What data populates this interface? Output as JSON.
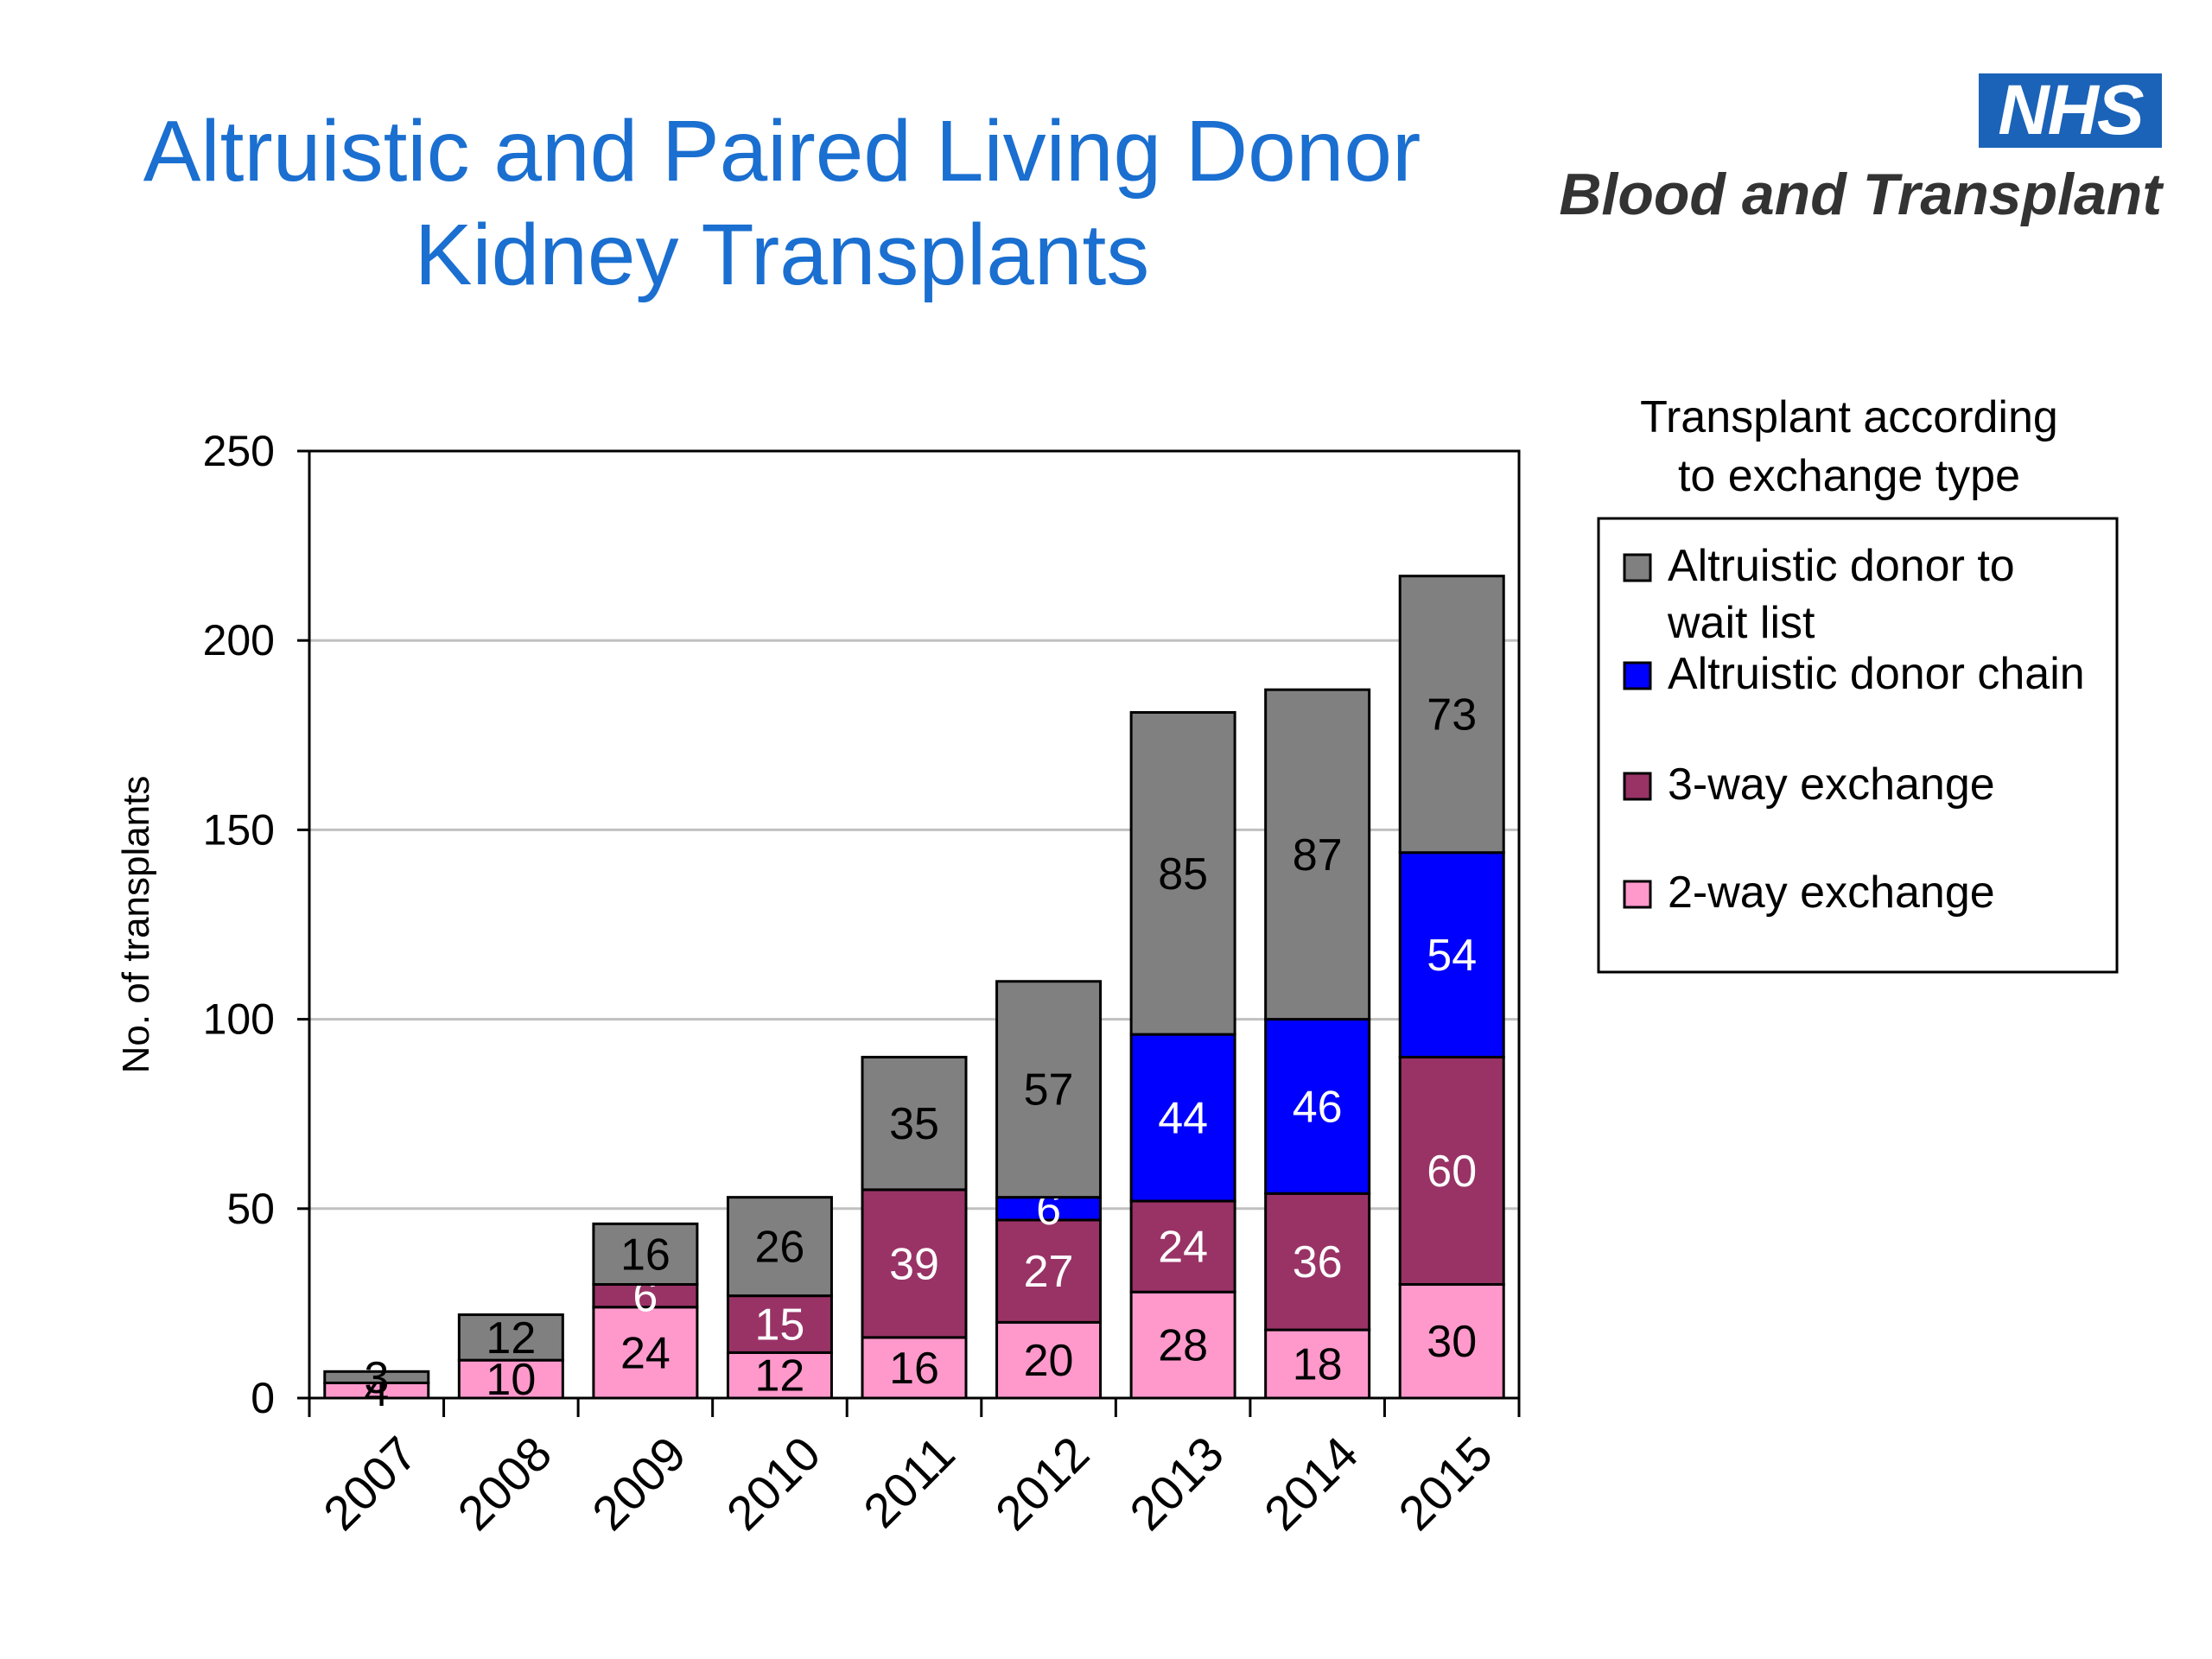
{
  "slide": {
    "title_line1": "Altruistic and Paired Living Donor",
    "title_line2": "Kidney Transplants"
  },
  "logo": {
    "badge": "NHS",
    "org": "Blood and Transplant"
  },
  "legend": {
    "title_line1": "Transplant according",
    "title_line2": "to exchange type"
  },
  "colors": {
    "altruistic_wait_list": "#808080",
    "altruistic_chain": "#0000ff",
    "three_way": "#993366",
    "two_way": "#ff99cc"
  },
  "chart_data": {
    "type": "bar",
    "stacked": true,
    "categories": [
      "2007",
      "2008",
      "2009",
      "2010",
      "2011",
      "2012",
      "2013",
      "2014",
      "2015"
    ],
    "ylabel": "No. of transplants",
    "xlabel": "",
    "ylim": [
      0,
      250
    ],
    "yticks": [
      0,
      50,
      100,
      150,
      200,
      250
    ],
    "grid": true,
    "legend_position": "right",
    "series": [
      {
        "name": "2-way exchange",
        "color": "#ff99cc",
        "label_color": "#000000",
        "values": [
          4,
          10,
          24,
          12,
          16,
          20,
          28,
          18,
          30
        ]
      },
      {
        "name": "3-way exchange",
        "color": "#993366",
        "label_color": "#ffffff",
        "values": [
          0,
          0,
          6,
          15,
          39,
          27,
          24,
          36,
          60
        ]
      },
      {
        "name": "Altruistic donor chain",
        "color": "#0000ff",
        "label_color": "#ffffff",
        "values": [
          0,
          0,
          0,
          0,
          0,
          6,
          44,
          46,
          54
        ]
      },
      {
        "name": "Altruistic donor to wait list",
        "color": "#808080",
        "label_color": "#000000",
        "values": [
          3,
          12,
          16,
          26,
          35,
          57,
          85,
          87,
          73
        ]
      }
    ],
    "legend_order": [
      {
        "label_lines": [
          "Altruistic donor to",
          "wait list"
        ],
        "color": "#808080"
      },
      {
        "label_lines": [
          "Altruistic donor chain"
        ],
        "color": "#0000ff"
      },
      {
        "label_lines": [
          "3-way exchange"
        ],
        "color": "#993366"
      },
      {
        "label_lines": [
          "2-way exchange"
        ],
        "color": "#ff99cc"
      }
    ]
  }
}
